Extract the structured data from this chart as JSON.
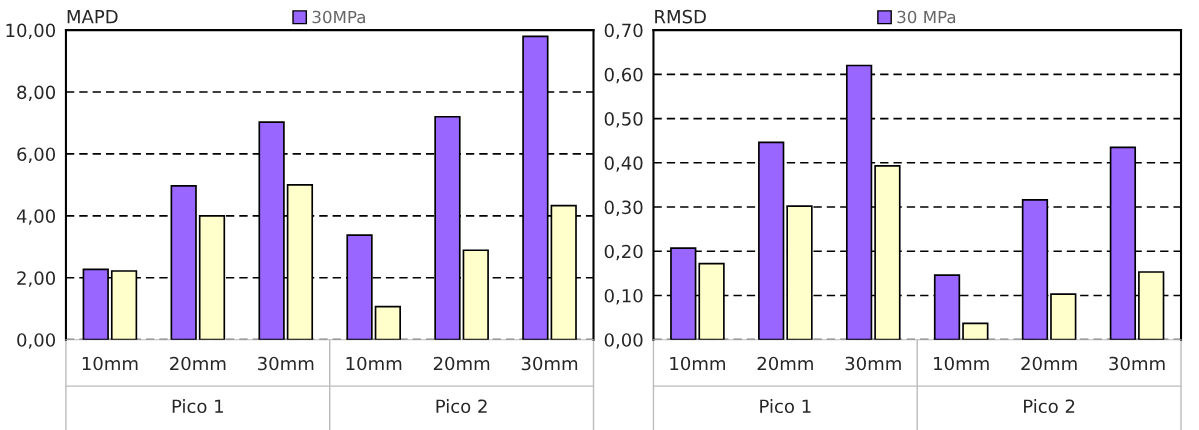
{
  "chart_data": [
    {
      "type": "bar",
      "ylabel": "MAPD",
      "categories": [
        "10mm",
        "20mm",
        "30mm",
        "10mm",
        "20mm",
        "30mm"
      ],
      "series": [
        {
          "name": "30MPa",
          "color": "#9966ff",
          "values": [
            2.27,
            4.97,
            7.03,
            3.38,
            7.2,
            9.8
          ]
        },
        {
          "color": "#ffffcc",
          "values": [
            2.22,
            4.0,
            5.0,
            1.07,
            2.89,
            4.33
          ]
        }
      ],
      "ylim": [
        0,
        10
      ],
      "yticks": [
        {
          "value": 0,
          "label": "0,00"
        },
        {
          "value": 2,
          "label": "2,00"
        },
        {
          "value": 4,
          "label": "4,00"
        },
        {
          "value": 6,
          "label": "6,00"
        },
        {
          "value": 8,
          "label": "8,00"
        },
        {
          "value": 10,
          "label": "10,00"
        }
      ],
      "grid": "y",
      "legend": "top",
      "annotations": [
        "Pico 1",
        "Pico 2"
      ]
    },
    {
      "type": "bar",
      "ylabel": "RMSD",
      "categories": [
        "10mm",
        "20mm",
        "30mm",
        "10mm",
        "20mm",
        "30mm"
      ],
      "series": [
        {
          "name": "30 MPa",
          "color": "#9966ff",
          "values": [
            0.207,
            0.446,
            0.62,
            0.146,
            0.316,
            0.435
          ]
        },
        {
          "color": "#ffffcc",
          "values": [
            0.172,
            0.302,
            0.393,
            0.037,
            0.103,
            0.153
          ]
        }
      ],
      "ylim": [
        0,
        0.7
      ],
      "yticks": [
        {
          "value": 0,
          "label": "0,00"
        },
        {
          "value": 0.1,
          "label": "0,10"
        },
        {
          "value": 0.2,
          "label": "0,20"
        },
        {
          "value": 0.3,
          "label": "0,30"
        },
        {
          "value": 0.4,
          "label": "0,40"
        },
        {
          "value": 0.5,
          "label": "0,50"
        },
        {
          "value": 0.6,
          "label": "0,60"
        },
        {
          "value": 0.7,
          "label": "0,70"
        }
      ],
      "grid": "y",
      "legend": "top",
      "annotations": [
        "Pico 1",
        "Pico 2"
      ]
    }
  ]
}
